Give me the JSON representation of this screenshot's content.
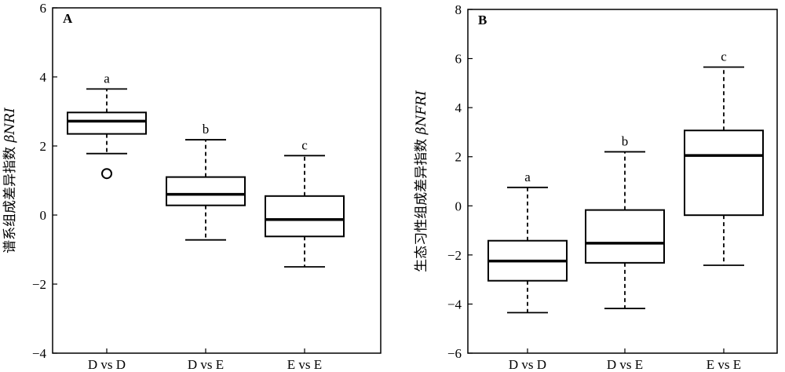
{
  "chart_data": [
    {
      "type": "boxplot",
      "panel_label": "A",
      "ylabel_cn": "谱系组成差异指数 ",
      "ylabel_symbol": "βNRI",
      "ylim": [
        -4,
        6
      ],
      "yticks": [
        -4,
        -2,
        0,
        2,
        4,
        6
      ],
      "ytick_labels": [
        "−4",
        "−2",
        "0",
        "2",
        "4",
        "6"
      ],
      "categories": [
        "D vs D",
        "D vs E",
        "E vs E"
      ],
      "boxes": [
        {
          "category": "D vs D",
          "whisker_low": 1.78,
          "q1": 2.35,
          "median": 2.72,
          "q3": 2.97,
          "whisker_high": 3.65,
          "outliers": [
            1.2
          ],
          "letter": "a"
        },
        {
          "category": "D vs E",
          "whisker_low": -0.72,
          "q1": 0.28,
          "median": 0.6,
          "q3": 1.1,
          "whisker_high": 2.18,
          "outliers": [],
          "letter": "b"
        },
        {
          "category": "E vs E",
          "whisker_low": -1.5,
          "q1": -0.62,
          "median": -0.13,
          "q3": 0.55,
          "whisker_high": 1.72,
          "outliers": [],
          "letter": "c"
        }
      ]
    },
    {
      "type": "boxplot",
      "panel_label": "B",
      "ylabel_cn": "生态习性组成差异指数 ",
      "ylabel_symbol": "βNFRI",
      "ylim": [
        -6,
        8
      ],
      "yticks": [
        -6,
        -4,
        -2,
        0,
        2,
        4,
        6,
        8
      ],
      "ytick_labels": [
        "−6",
        "−4",
        "−2",
        "0",
        "2",
        "4",
        "6",
        "8"
      ],
      "categories": [
        "D vs D",
        "D vs E",
        "E vs E"
      ],
      "boxes": [
        {
          "category": "D vs D",
          "whisker_low": -4.35,
          "q1": -3.05,
          "median": -2.25,
          "q3": -1.42,
          "whisker_high": 0.75,
          "outliers": [],
          "letter": "a"
        },
        {
          "category": "D vs E",
          "whisker_low": -4.18,
          "q1": -2.32,
          "median": -1.52,
          "q3": -0.17,
          "whisker_high": 2.2,
          "outliers": [],
          "letter": "b"
        },
        {
          "category": "E vs E",
          "whisker_low": -2.42,
          "q1": -0.38,
          "median": 2.05,
          "q3": 3.07,
          "whisker_high": 5.65,
          "outliers": [],
          "letter": "c"
        }
      ]
    }
  ]
}
